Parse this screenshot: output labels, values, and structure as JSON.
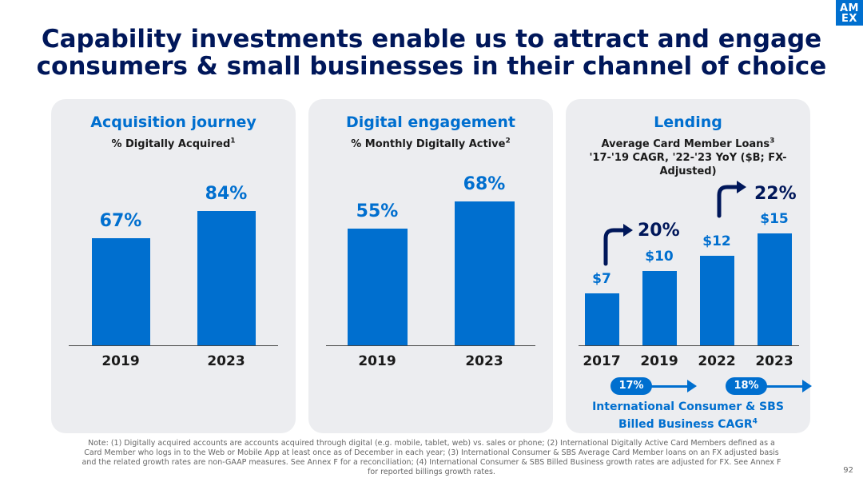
{
  "title": "Capability investments enable us to attract and engage consumers & small businesses in their channel of choice",
  "logo": {
    "line1": "AM",
    "line2": "EX"
  },
  "panels": {
    "acquisition": {
      "title": "Acquisition journey",
      "subtitle": "% Digitally Acquired",
      "sup": "1",
      "chart_data": {
        "type": "bar",
        "categories": [
          "2019",
          "2023"
        ],
        "values": [
          67,
          84
        ],
        "labels": [
          "67%",
          "84%"
        ]
      }
    },
    "engagement": {
      "title": "Digital engagement",
      "subtitle": "% Monthly Digitally Active",
      "sup": "2",
      "chart_data": {
        "type": "bar",
        "categories": [
          "2019",
          "2023"
        ],
        "values": [
          55,
          68
        ],
        "labels": [
          "55%",
          "68%"
        ]
      }
    },
    "lending": {
      "title": "Lending",
      "subtitle_line1": "Average Card Member Loans",
      "sup": "3",
      "subtitle_line2": "'17-'19 CAGR, '22-'23 YoY ($B; FX-Adjusted)",
      "chart_data": {
        "type": "bar",
        "categories": [
          "2017",
          "2019",
          "2022",
          "2023"
        ],
        "values": [
          7,
          10,
          12,
          15
        ],
        "labels": [
          "$7",
          "$10",
          "$12",
          "$15"
        ]
      },
      "growth_1": "20%",
      "growth_2": "22%",
      "pill_1": "17%",
      "pill_2": "18%",
      "intl_line1": "International Consumer & SBS",
      "intl_line2": "Billed Business CAGR",
      "intl_sup": "4"
    }
  },
  "note": "Note: (1) Digitally acquired accounts are accounts acquired through digital (e.g. mobile, tablet, web) vs. sales or phone; (2) International Digitally Active Card Members defined as a Card Member who logs in to the Web or Mobile App at least once as of December in each year; (3) International Consumer & SBS Average Card Member loans on an FX adjusted basis and the related growth rates are non-GAAP measures. See Annex F for a reconciliation; (4) International Consumer & SBS Billed Business growth rates are adjusted for FX. See Annex F for reported billings growth rates.",
  "page_number": "92"
}
